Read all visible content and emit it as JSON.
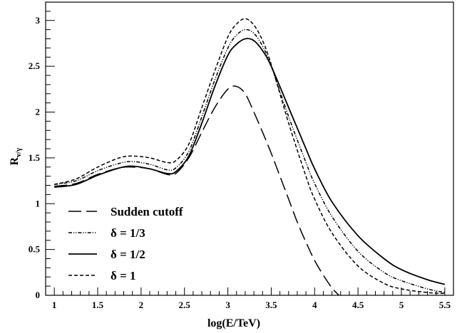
{
  "chart_data": {
    "type": "line",
    "xlabel": "log(E/TeV)",
    "ylabel": "R",
    "ylabel_sub": "ν/γ",
    "xlim": [
      0.9,
      5.6
    ],
    "ylim": [
      0,
      3.2
    ],
    "xticks": [
      1,
      1.5,
      2,
      2.5,
      3,
      3.5,
      4,
      4.5,
      5,
      5.5
    ],
    "xtick_labels": [
      "1",
      "1.5",
      "2",
      "2.5",
      "3",
      "3.5",
      "4",
      "4.5",
      "5",
      "5.5"
    ],
    "yticks": [
      0,
      0.5,
      1,
      1.5,
      2,
      2.5,
      3
    ],
    "ytick_labels": [
      "0",
      "0.5",
      "1",
      "1.5",
      "2",
      "2.5",
      "3"
    ],
    "legend_position": "bottom-left",
    "series": [
      {
        "name": "Sudden cutoff",
        "style": "long-dash",
        "x": [
          1.0,
          1.25,
          1.5,
          1.75,
          1.9,
          2.1,
          2.3,
          2.4,
          2.55,
          2.7,
          2.85,
          3.0,
          3.1,
          3.2,
          3.3,
          3.4,
          3.5,
          3.6,
          3.7,
          3.8,
          3.9,
          4.0,
          4.1,
          4.2,
          4.28
        ],
        "y": [
          1.19,
          1.22,
          1.32,
          1.39,
          1.4,
          1.38,
          1.32,
          1.33,
          1.5,
          1.78,
          2.05,
          2.25,
          2.28,
          2.2,
          2.0,
          1.78,
          1.55,
          1.3,
          1.05,
          0.8,
          0.58,
          0.38,
          0.22,
          0.08,
          0.0
        ]
      },
      {
        "name": "δ = 1/3",
        "style": "dash-dot-dot",
        "x": [
          1.0,
          1.25,
          1.5,
          1.75,
          1.9,
          2.1,
          2.3,
          2.4,
          2.55,
          2.7,
          2.85,
          3.0,
          3.1,
          3.2,
          3.3,
          3.4,
          3.5,
          3.7,
          3.9,
          4.0,
          4.2,
          4.5,
          4.8,
          5.0,
          5.3,
          5.5
        ],
        "y": [
          1.21,
          1.25,
          1.36,
          1.44,
          1.46,
          1.43,
          1.37,
          1.39,
          1.57,
          1.95,
          2.35,
          2.7,
          2.84,
          2.9,
          2.86,
          2.72,
          2.5,
          1.95,
          1.45,
          1.22,
          0.86,
          0.48,
          0.25,
          0.16,
          0.07,
          0.03
        ]
      },
      {
        "name": "δ = 1/2",
        "style": "solid",
        "x": [
          1.0,
          1.25,
          1.5,
          1.75,
          1.9,
          2.1,
          2.3,
          2.4,
          2.55,
          2.7,
          2.85,
          3.0,
          3.1,
          3.2,
          3.3,
          3.4,
          3.5,
          3.7,
          3.9,
          4.0,
          4.2,
          4.5,
          4.8,
          5.0,
          5.3,
          5.5
        ],
        "y": [
          1.18,
          1.21,
          1.31,
          1.39,
          1.41,
          1.38,
          1.33,
          1.35,
          1.52,
          1.88,
          2.28,
          2.62,
          2.74,
          2.8,
          2.78,
          2.67,
          2.5,
          2.05,
          1.6,
          1.38,
          1.02,
          0.65,
          0.4,
          0.28,
          0.17,
          0.12
        ]
      },
      {
        "name": "δ = 1",
        "style": "short-dash",
        "x": [
          1.0,
          1.25,
          1.5,
          1.75,
          1.9,
          2.1,
          2.3,
          2.4,
          2.55,
          2.7,
          2.85,
          3.0,
          3.1,
          3.2,
          3.3,
          3.4,
          3.5,
          3.7,
          3.9,
          4.0,
          4.2,
          4.5,
          4.8,
          5.0,
          5.3,
          5.5
        ],
        "y": [
          1.21,
          1.27,
          1.4,
          1.5,
          1.52,
          1.5,
          1.45,
          1.47,
          1.65,
          2.05,
          2.45,
          2.82,
          2.96,
          3.02,
          2.95,
          2.78,
          2.52,
          1.88,
          1.3,
          1.05,
          0.68,
          0.32,
          0.13,
          0.07,
          0.03,
          0.02
        ]
      }
    ]
  }
}
